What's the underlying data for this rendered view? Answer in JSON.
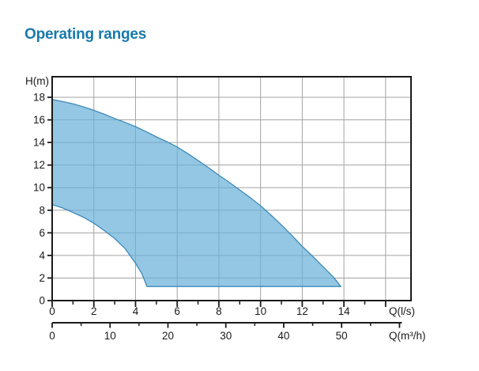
{
  "page": {
    "title": "Operating ranges"
  },
  "colors": {
    "title": "#1879AB",
    "axis": "#1A1A1A",
    "grid": "#A3A3A3",
    "tick_label": "#1A1A1A",
    "region_fill": "#67AFD9",
    "region_fill_opacity": 0.7,
    "region_stroke": "#3D89B8",
    "background": "#FFFFFF"
  },
  "chart_data": {
    "type": "area",
    "title": "Operating ranges",
    "description": "Pump operating range envelope: head H in metres versus flow Q",
    "grid": {
      "x_step_ls": 2,
      "y_step_m": 2,
      "visible": true
    },
    "y_axis": {
      "label": "H(m)",
      "ticks": [
        0,
        2,
        4,
        6,
        8,
        10,
        12,
        14,
        16,
        18
      ],
      "range": [
        0,
        19.82
      ]
    },
    "x_axis_primary": {
      "label": "Q(l/s)",
      "labeled_ticks": [
        0,
        2,
        4,
        6,
        8,
        10,
        12,
        14
      ],
      "major_ticks": [
        0,
        2,
        4,
        6,
        8,
        10,
        12,
        14,
        16
      ],
      "minor_ticks": [
        1,
        3,
        5,
        7,
        9,
        11,
        13,
        15
      ],
      "range": [
        0,
        17.22
      ]
    },
    "x_axis_secondary": {
      "label": "Q(m³/h)",
      "labeled_ticks": [
        0,
        10,
        20,
        30,
        40,
        50
      ],
      "major_ticks": [
        0,
        10,
        20,
        30,
        40,
        50,
        60
      ],
      "minor_ticks": [
        5,
        15,
        25,
        35,
        45,
        55
      ],
      "ls_per_unit": 0.27778
    },
    "series": [
      {
        "name": "upper-boundary",
        "points": [
          [
            0,
            17.8
          ],
          [
            0.5,
            17.62
          ],
          [
            1,
            17.42
          ],
          [
            1.5,
            17.15
          ],
          [
            2,
            16.85
          ],
          [
            2.5,
            16.5
          ],
          [
            3,
            16.12
          ],
          [
            3.5,
            15.78
          ],
          [
            4,
            15.4
          ],
          [
            4.5,
            14.97
          ],
          [
            5,
            14.5
          ],
          [
            5.5,
            14.07
          ],
          [
            6,
            13.6
          ],
          [
            6.5,
            13.02
          ],
          [
            7,
            12.4
          ],
          [
            7.5,
            11.77
          ],
          [
            8,
            11.1
          ],
          [
            8.5,
            10.47
          ],
          [
            9,
            9.8
          ],
          [
            9.5,
            9.12
          ],
          [
            10,
            8.4
          ],
          [
            10.5,
            7.57
          ],
          [
            11,
            6.7
          ],
          [
            11.5,
            5.77
          ],
          [
            12,
            4.8
          ],
          [
            12.5,
            3.92
          ],
          [
            13,
            3.0
          ],
          [
            13.5,
            2.08
          ],
          [
            13.85,
            1.25
          ]
        ]
      },
      {
        "name": "lower-boundary",
        "points": [
          [
            0,
            8.5
          ],
          [
            0.5,
            8.2
          ],
          [
            1,
            7.8
          ],
          [
            1.5,
            7.38
          ],
          [
            2,
            6.85
          ],
          [
            2.5,
            6.2
          ],
          [
            3,
            5.5
          ],
          [
            3.5,
            4.6
          ],
          [
            4,
            3.3
          ],
          [
            4.3,
            2.4
          ],
          [
            4.55,
            1.25
          ],
          [
            13.85,
            1.25
          ]
        ]
      }
    ]
  }
}
